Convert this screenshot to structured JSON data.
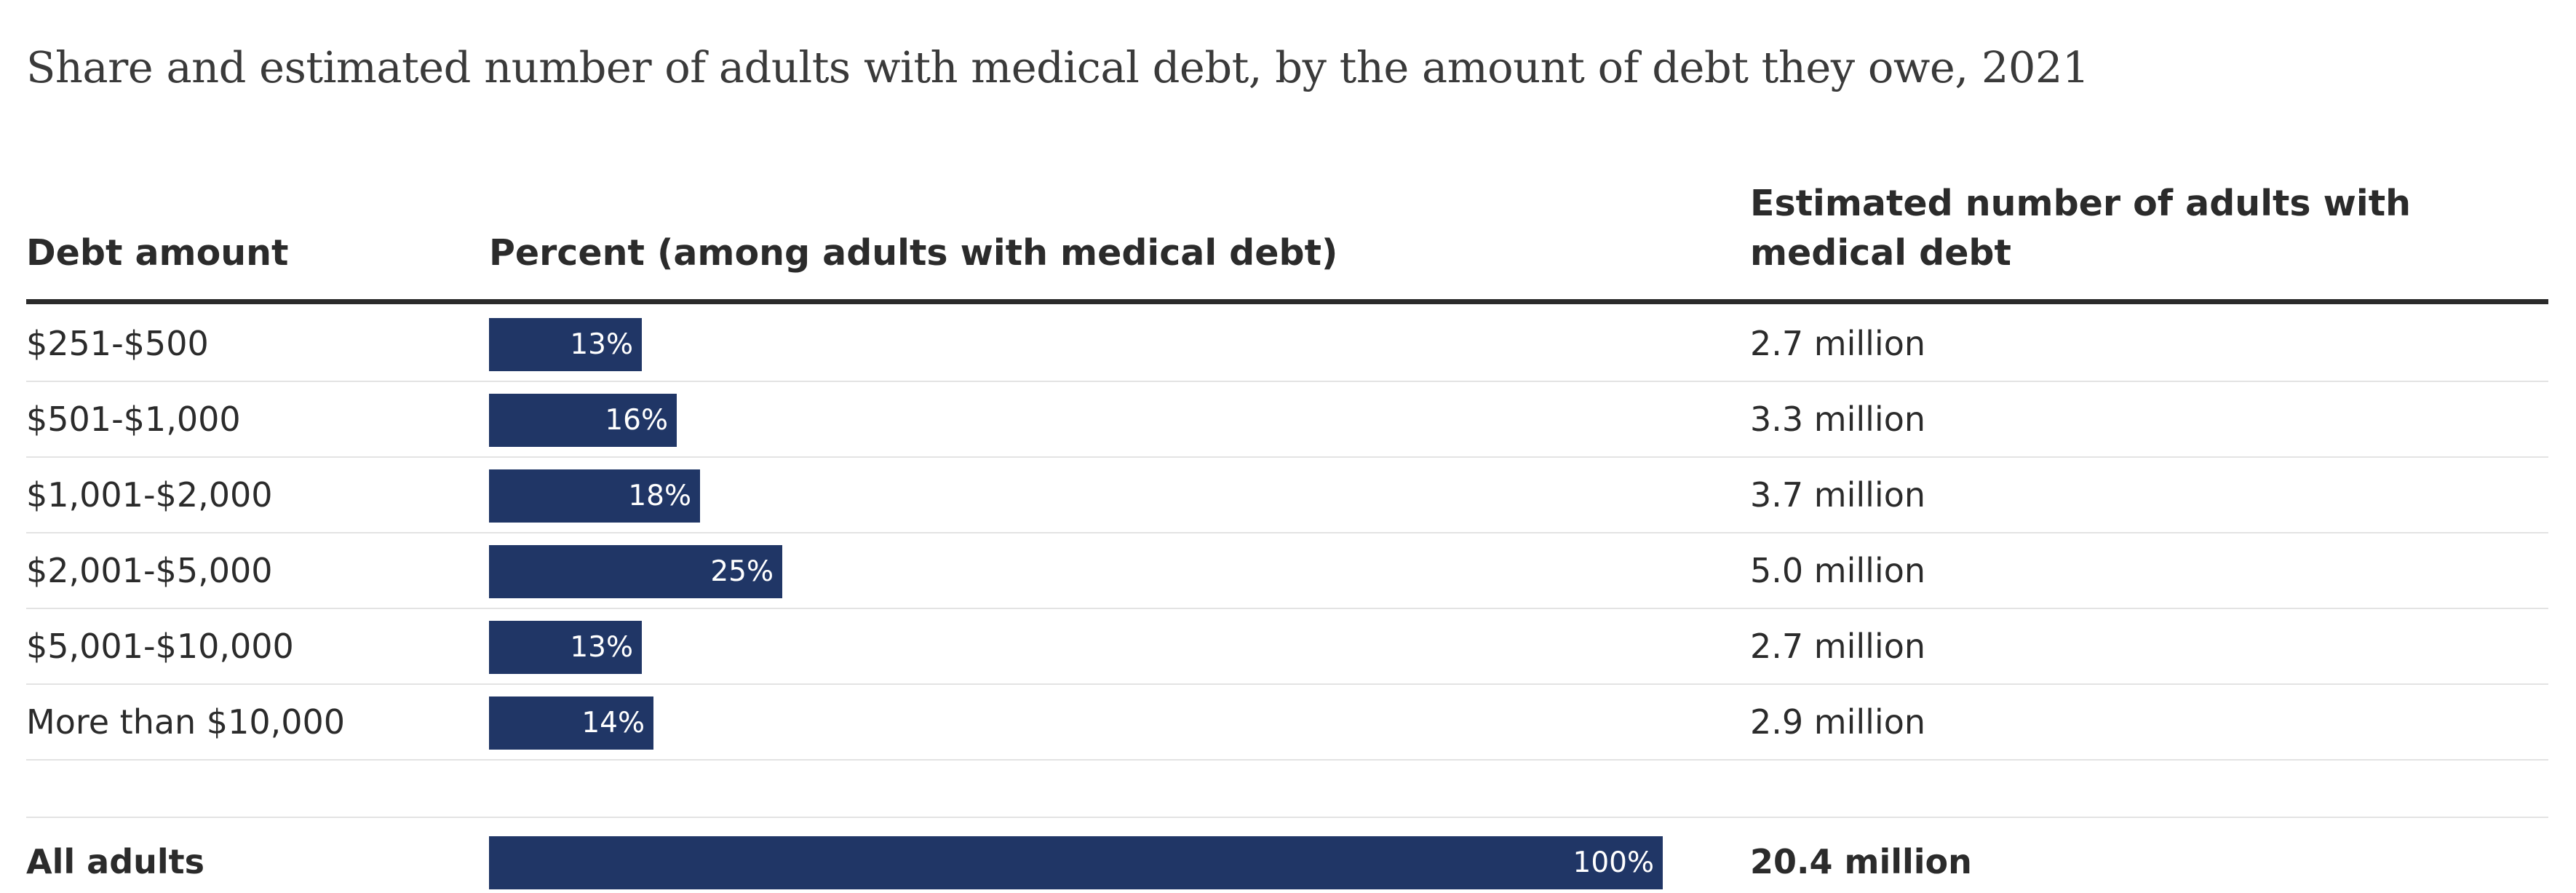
{
  "chart_data": {
    "type": "bar",
    "orientation": "horizontal",
    "title": "Share and estimated number of adults with medical debt, by the amount of debt they owe, 2021",
    "columns": {
      "debt_amount": "Debt amount",
      "percent": "Percent (among adults with medical debt)",
      "estimated": "Estimated number of adults with medical debt"
    },
    "rows": [
      {
        "category": "$251-$500",
        "value": 13,
        "value_label": "13%",
        "count": "2.7 million"
      },
      {
        "category": "$501-$1,000",
        "value": 16,
        "value_label": "16%",
        "count": "3.3 million"
      },
      {
        "category": "$1,001-$2,000",
        "value": 18,
        "value_label": "18%",
        "count": "3.7 million"
      },
      {
        "category": "$2,001-$5,000",
        "value": 25,
        "value_label": "25%",
        "count": "5.0 million"
      },
      {
        "category": "$5,001-$10,000",
        "value": 13,
        "value_label": "13%",
        "count": "2.7 million"
      },
      {
        "category": "More than $10,000",
        "value": 14,
        "value_label": "14%",
        "count": "2.9 million"
      }
    ],
    "total": {
      "category": "All adults",
      "value": 100,
      "value_label": "100%",
      "count": "20.4 million"
    },
    "xlim": [
      0,
      100
    ],
    "bar_color": "#203666",
    "grid": false,
    "legend": "none"
  }
}
